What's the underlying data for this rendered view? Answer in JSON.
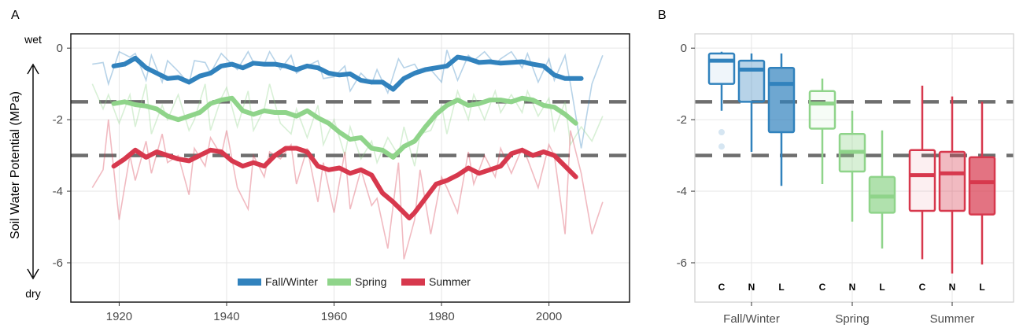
{
  "colors": {
    "Fall/Winter": "#3182bd",
    "Spring": "#8fd48a",
    "Summer": "#d7384d",
    "threshold": "#6e6e6e",
    "grid": "#e6e6e6"
  },
  "axis": {
    "ylabel": "Soil Water Potential (MPa)",
    "wet_label": "wet",
    "dry_label": "dry"
  },
  "chart_data": [
    {
      "panel": "A",
      "type": "line",
      "xlabel": "",
      "ylabel": "Soil Water Potential (MPa)",
      "xlim": [
        1911,
        2015
      ],
      "ylim": [
        -7.1,
        0.4
      ],
      "xticks": [
        1920,
        1940,
        1960,
        1980,
        2000
      ],
      "yticks": [
        0,
        -2,
        -4,
        -6
      ],
      "ytick_labels": [
        "0",
        "-2",
        "-4",
        "-6"
      ],
      "thresholds": [
        -1.5,
        -3
      ],
      "legend": [
        "Fall/Winter",
        "Spring",
        "Summer"
      ],
      "legend_position": "bottom-center",
      "series": [
        {
          "name": "Fall/Winter",
          "smooth": {
            "x": [
              1919,
              1921,
              1923,
              1925,
              1927,
              1929,
              1931,
              1933,
              1935,
              1937,
              1939,
              1941,
              1943,
              1945,
              1947,
              1949,
              1951,
              1953,
              1955,
              1957,
              1959,
              1961,
              1963,
              1965,
              1967,
              1969,
              1971,
              1973,
              1975,
              1977,
              1979,
              1981,
              1983,
              1985,
              1987,
              1989,
              1991,
              1993,
              1995,
              1997,
              1999,
              2001,
              2003,
              2006
            ],
            "y": [
              -0.5,
              -0.45,
              -0.28,
              -0.55,
              -0.7,
              -0.85,
              -0.82,
              -0.95,
              -0.78,
              -0.7,
              -0.5,
              -0.45,
              -0.55,
              -0.42,
              -0.45,
              -0.45,
              -0.5,
              -0.6,
              -0.5,
              -0.55,
              -0.7,
              -0.75,
              -0.72,
              -0.9,
              -0.95,
              -0.95,
              -1.15,
              -0.85,
              -0.7,
              -0.6,
              -0.55,
              -0.5,
              -0.25,
              -0.3,
              -0.4,
              -0.38,
              -0.42,
              -0.4,
              -0.38,
              -0.45,
              -0.5,
              -0.75,
              -0.85,
              -0.85
            ]
          },
          "raw": {
            "x": [
              1915,
              1917,
              1918,
              1920,
              1922,
              1923,
              1925,
              1926,
              1928,
              1929,
              1931,
              1933,
              1934,
              1936,
              1937,
              1939,
              1940,
              1942,
              1944,
              1945,
              1947,
              1948,
              1950,
              1952,
              1953,
              1955,
              1957,
              1958,
              1960,
              1962,
              1963,
              1965,
              1967,
              1968,
              1970,
              1972,
              1973,
              1975,
              1976,
              1978,
              1980,
              1981,
              1983,
              1985,
              1986,
              1988,
              1990,
              1991,
              1993,
              1995,
              1996,
              1998,
              2000,
              2001,
              2003,
              2004,
              2006,
              2008,
              2010
            ],
            "y": [
              -0.45,
              -0.4,
              -1.0,
              -0.1,
              -0.25,
              -0.15,
              -0.9,
              -0.2,
              -0.95,
              -0.35,
              -0.65,
              -1.0,
              -0.35,
              -0.4,
              -0.7,
              -0.15,
              -0.3,
              -0.6,
              -0.1,
              -0.4,
              -0.45,
              -0.1,
              -0.6,
              -0.2,
              -0.7,
              -0.5,
              -0.35,
              -0.85,
              -0.8,
              -0.5,
              -1.2,
              -0.7,
              -1.0,
              -0.6,
              -1.25,
              -0.3,
              -0.55,
              -0.45,
              -0.7,
              -0.6,
              -0.95,
              -0.05,
              -0.9,
              -0.2,
              -0.35,
              -0.1,
              -0.45,
              -0.3,
              -0.1,
              -0.55,
              -0.15,
              -0.95,
              -0.3,
              -0.9,
              -0.2,
              -1.0,
              -2.8,
              -1.0,
              -0.2
            ]
          }
        },
        {
          "name": "Spring",
          "smooth": {
            "x": [
              1919,
              1921,
              1923,
              1925,
              1927,
              1929,
              1931,
              1933,
              1935,
              1937,
              1939,
              1941,
              1943,
              1945,
              1947,
              1949,
              1951,
              1953,
              1955,
              1957,
              1959,
              1961,
              1963,
              1965,
              1967,
              1969,
              1971,
              1973,
              1975,
              1977,
              1979,
              1981,
              1983,
              1985,
              1987,
              1989,
              1991,
              1993,
              1995,
              1997,
              1999,
              2001,
              2003,
              2005
            ],
            "y": [
              -1.55,
              -1.5,
              -1.58,
              -1.62,
              -1.7,
              -1.9,
              -2.0,
              -1.9,
              -1.8,
              -1.55,
              -1.45,
              -1.4,
              -1.75,
              -1.85,
              -1.75,
              -1.8,
              -1.8,
              -1.9,
              -1.75,
              -1.95,
              -2.1,
              -2.35,
              -2.55,
              -2.5,
              -2.8,
              -2.85,
              -3.05,
              -2.75,
              -2.6,
              -2.2,
              -1.85,
              -1.6,
              -1.45,
              -1.6,
              -1.55,
              -1.45,
              -1.45,
              -1.5,
              -1.4,
              -1.45,
              -1.6,
              -1.65,
              -1.85,
              -2.1
            ]
          },
          "raw": {
            "x": [
              1915,
              1917,
              1918,
              1920,
              1922,
              1923,
              1925,
              1926,
              1928,
              1929,
              1931,
              1933,
              1934,
              1936,
              1937,
              1939,
              1940,
              1942,
              1944,
              1945,
              1947,
              1948,
              1950,
              1952,
              1953,
              1955,
              1957,
              1958,
              1960,
              1962,
              1963,
              1965,
              1967,
              1968,
              1970,
              1972,
              1973,
              1975,
              1976,
              1978,
              1980,
              1981,
              1983,
              1985,
              1986,
              1988,
              1990,
              1991,
              1993,
              1995,
              1996,
              1998,
              2000,
              2001,
              2003,
              2004,
              2006,
              2008,
              2010
            ],
            "y": [
              -1.0,
              -1.7,
              -1.3,
              -2.1,
              -1.3,
              -2.2,
              -1.0,
              -2.4,
              -1.6,
              -2.0,
              -1.3,
              -2.3,
              -2.0,
              -1.0,
              -2.3,
              -1.4,
              -1.1,
              -2.2,
              -1.2,
              -2.3,
              -1.7,
              -1.0,
              -2.1,
              -2.4,
              -1.7,
              -2.5,
              -1.6,
              -2.7,
              -2.0,
              -3.0,
              -2.2,
              -3.1,
              -2.6,
              -3.2,
              -2.5,
              -3.0,
              -2.2,
              -3.3,
              -2.4,
              -2.3,
              -1.6,
              -2.4,
              -1.2,
              -2.0,
              -1.3,
              -2.0,
              -1.2,
              -1.8,
              -1.3,
              -1.8,
              -1.2,
              -1.9,
              -1.4,
              -2.3,
              -1.5,
              -2.7,
              -2.2,
              -2.6,
              -1.9
            ]
          }
        },
        {
          "name": "Summer",
          "smooth": {
            "x": [
              1919,
              1921,
              1923,
              1925,
              1927,
              1929,
              1931,
              1933,
              1935,
              1937,
              1939,
              1941,
              1943,
              1945,
              1947,
              1949,
              1951,
              1953,
              1955,
              1957,
              1959,
              1961,
              1963,
              1965,
              1967,
              1969,
              1971,
              1973,
              1974,
              1975,
              1977,
              1979,
              1981,
              1983,
              1985,
              1987,
              1989,
              1991,
              1993,
              1995,
              1997,
              1999,
              2001,
              2003,
              2005
            ],
            "y": [
              -3.3,
              -3.1,
              -2.85,
              -3.05,
              -2.9,
              -3.0,
              -3.1,
              -3.15,
              -3.0,
              -2.85,
              -2.9,
              -3.15,
              -3.3,
              -3.2,
              -3.3,
              -3.0,
              -2.8,
              -2.8,
              -2.9,
              -3.3,
              -3.4,
              -3.35,
              -3.5,
              -3.4,
              -3.55,
              -4.05,
              -4.3,
              -4.6,
              -4.75,
              -4.6,
              -4.2,
              -3.8,
              -3.7,
              -3.55,
              -3.35,
              -3.5,
              -3.4,
              -3.3,
              -2.95,
              -2.85,
              -3.0,
              -2.9,
              -3.0,
              -3.3,
              -3.6
            ]
          },
          "raw": {
            "x": [
              1915,
              1917,
              1918,
              1920,
              1922,
              1923,
              1925,
              1926,
              1928,
              1929,
              1931,
              1933,
              1934,
              1936,
              1937,
              1939,
              1940,
              1942,
              1944,
              1945,
              1947,
              1948,
              1950,
              1952,
              1953,
              1955,
              1957,
              1958,
              1960,
              1962,
              1963,
              1965,
              1967,
              1968,
              1970,
              1972,
              1973,
              1975,
              1976,
              1978,
              1980,
              1981,
              1983,
              1985,
              1986,
              1988,
              1990,
              1991,
              1993,
              1995,
              1996,
              1998,
              2000,
              2001,
              2003,
              2004,
              2006,
              2008,
              2010
            ],
            "y": [
              -3.9,
              -3.4,
              -2.0,
              -4.8,
              -3.0,
              -3.7,
              -2.6,
              -3.5,
              -2.4,
              -3.2,
              -3.0,
              -4.1,
              -2.8,
              -3.3,
              -2.5,
              -3.0,
              -2.3,
              -3.9,
              -4.5,
              -3.0,
              -3.6,
              -2.9,
              -3.1,
              -2.7,
              -3.8,
              -2.8,
              -4.3,
              -3.2,
              -4.6,
              -2.9,
              -4.5,
              -3.4,
              -4.4,
              -4.2,
              -5.6,
              -3.2,
              -5.9,
              -4.8,
              -3.4,
              -5.2,
              -3.6,
              -3.9,
              -4.6,
              -2.9,
              -3.8,
              -3.0,
              -3.6,
              -2.8,
              -3.5,
              -2.8,
              -3.1,
              -3.9,
              -2.7,
              -3.0,
              -5.2,
              -2.3,
              -3.5,
              -5.2,
              -4.3
            ]
          }
        }
      ]
    },
    {
      "panel": "B",
      "type": "box",
      "ylabel": "",
      "ylim": [
        -7.1,
        0.4
      ],
      "yticks": [
        0,
        -2,
        -4,
        -6
      ],
      "ytick_labels": [
        "0",
        "-2",
        "-4",
        "-6"
      ],
      "thresholds": [
        -1.5,
        -3
      ],
      "categories": [
        "Fall/Winter",
        "Spring",
        "Summer"
      ],
      "group_labels": [
        "C",
        "N",
        "L"
      ],
      "boxes": [
        {
          "season": "Fall/Winter",
          "group": "C",
          "q1": -1.0,
          "median": -0.35,
          "q3": -0.15,
          "whisker_low": -1.75,
          "whisker_high": -0.1,
          "outliers": [
            -2.35,
            -2.75
          ]
        },
        {
          "season": "Fall/Winter",
          "group": "N",
          "q1": -1.5,
          "median": -0.6,
          "q3": -0.35,
          "whisker_low": -2.9,
          "whisker_high": -0.15,
          "outliers": []
        },
        {
          "season": "Fall/Winter",
          "group": "L",
          "q1": -2.35,
          "median": -1.0,
          "q3": -0.55,
          "whisker_low": -3.85,
          "whisker_high": -0.15,
          "outliers": []
        },
        {
          "season": "Spring",
          "group": "C",
          "q1": -2.25,
          "median": -1.55,
          "q3": -1.2,
          "whisker_low": -3.8,
          "whisker_high": -0.85,
          "outliers": []
        },
        {
          "season": "Spring",
          "group": "N",
          "q1": -3.45,
          "median": -2.9,
          "q3": -2.4,
          "whisker_low": -4.85,
          "whisker_high": -1.75,
          "outliers": []
        },
        {
          "season": "Spring",
          "group": "L",
          "q1": -4.6,
          "median": -4.15,
          "q3": -3.6,
          "whisker_low": -5.6,
          "whisker_high": -2.3,
          "outliers": []
        },
        {
          "season": "Summer",
          "group": "C",
          "q1": -4.55,
          "median": -3.55,
          "q3": -2.85,
          "whisker_low": -5.9,
          "whisker_high": -1.05,
          "outliers": []
        },
        {
          "season": "Summer",
          "group": "N",
          "q1": -4.55,
          "median": -3.5,
          "q3": -2.9,
          "whisker_low": -6.3,
          "whisker_high": -1.35,
          "outliers": []
        },
        {
          "season": "Summer",
          "group": "L",
          "q1": -4.65,
          "median": -3.75,
          "q3": -3.05,
          "whisker_low": -6.05,
          "whisker_high": -1.5,
          "outliers": []
        }
      ]
    }
  ]
}
